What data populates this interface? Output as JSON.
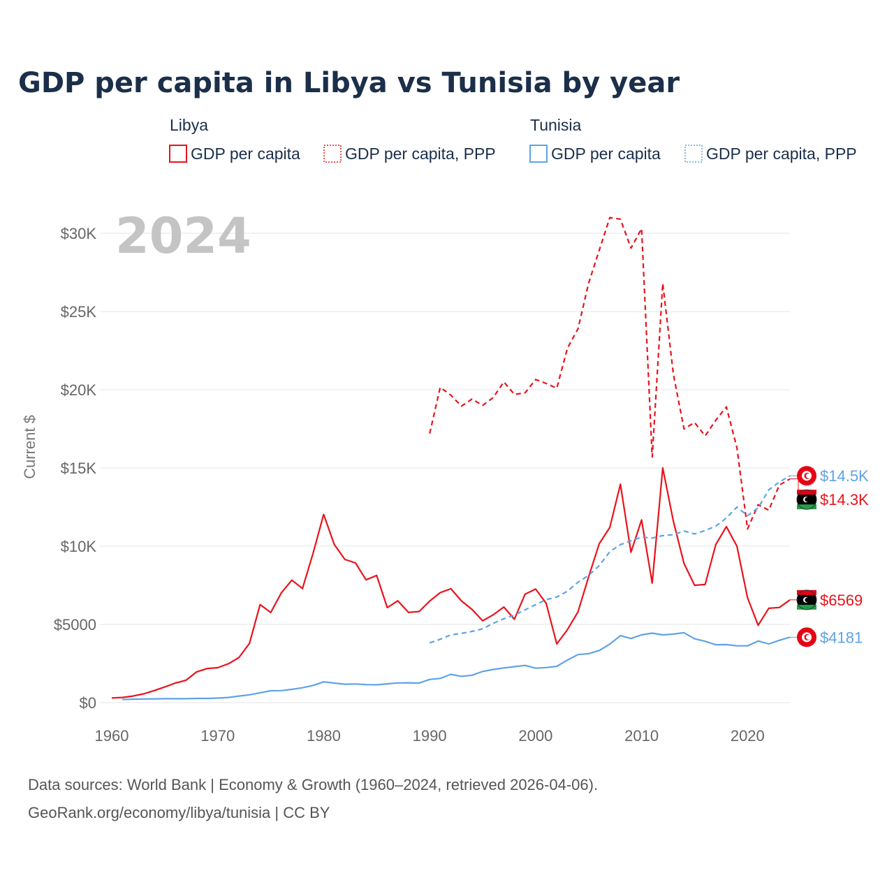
{
  "header": {
    "title": "GDP per capita in Libya vs Tunisia by year"
  },
  "legend": {
    "libya_label": "Libya",
    "tunisia_label": "Tunisia",
    "items": [
      {
        "country": "libya",
        "text": "GDP per capita",
        "style": "solid",
        "color": "#e8131c"
      },
      {
        "country": "libya",
        "text": "GDP per capita, PPP",
        "style": "dotted",
        "color": "#e8131c"
      },
      {
        "country": "tunisia",
        "text": "GDP per capita",
        "style": "solid",
        "color": "#5ea3e6"
      },
      {
        "country": "tunisia",
        "text": "GDP per capita, PPP",
        "style": "dotted",
        "color": "#5ea3e6"
      }
    ]
  },
  "footer": {
    "source_line1": "Data sources: World Bank | Economy & Growth (1960–2024, retrieved 2026-04-06).",
    "source_line2": "GeoRank.org/economy/libya/tunisia | CC BY"
  },
  "chart_data": {
    "type": "line",
    "title": "GDP per capita in Libya vs Tunisia by year",
    "current_year_label": "2024",
    "xlabel": "",
    "ylabel": "Current $",
    "xlim": [
      1960,
      2024
    ],
    "ylim": [
      0,
      32000
    ],
    "x_ticks": [
      1960,
      1970,
      1980,
      1990,
      2000,
      2010,
      2020
    ],
    "x_tick_labels": [
      "1960",
      "1970",
      "1980",
      "1990",
      "2000",
      "2010",
      "2020"
    ],
    "y_ticks": [
      0,
      5000,
      10000,
      15000,
      20000,
      25000,
      30000
    ],
    "y_tick_labels": [
      "$0",
      "$5000",
      "$10K",
      "$15K",
      "$20K",
      "$25K",
      "$30K"
    ],
    "grid": true,
    "series": [
      {
        "name": "Libya GDP per capita",
        "country": "Libya",
        "color": "#e8131c",
        "dash": "solid",
        "end_label": "$6569",
        "x": [
          1960,
          1961,
          1962,
          1963,
          1964,
          1965,
          1966,
          1967,
          1968,
          1969,
          1970,
          1971,
          1972,
          1973,
          1974,
          1975,
          1976,
          1977,
          1978,
          1979,
          1980,
          1981,
          1982,
          1983,
          1984,
          1985,
          1986,
          1987,
          1988,
          1989,
          1990,
          1991,
          1992,
          1993,
          1994,
          1995,
          1996,
          1997,
          1998,
          1999,
          2000,
          2001,
          2002,
          2003,
          2004,
          2005,
          2006,
          2007,
          2008,
          2009,
          2010,
          2011,
          2012,
          2013,
          2014,
          2015,
          2016,
          2017,
          2018,
          2019,
          2020,
          2021,
          2022,
          2023,
          2024
        ],
        "values": [
          300,
          330,
          420,
          560,
          770,
          1000,
          1250,
          1430,
          1960,
          2180,
          2230,
          2480,
          2880,
          3790,
          6270,
          5760,
          7020,
          7830,
          7290,
          9560,
          12030,
          10110,
          9150,
          8930,
          7850,
          8130,
          6070,
          6510,
          5770,
          5820,
          6490,
          7030,
          7280,
          6500,
          5960,
          5230,
          5610,
          6110,
          5330,
          6930,
          7260,
          6350,
          3750,
          4660,
          5810,
          8030,
          10150,
          11200,
          13960,
          9610,
          11680,
          7640,
          15000,
          11600,
          8900,
          7500,
          7550,
          10100,
          11250,
          10000,
          6700,
          4940,
          6030,
          6080,
          6569
        ]
      },
      {
        "name": "Libya GDP per capita, PPP",
        "country": "Libya",
        "color": "#e8131c",
        "dash": "dashed",
        "end_label": "$14.3K",
        "x": [
          1990,
          1991,
          1992,
          1993,
          1994,
          1995,
          1996,
          1997,
          1998,
          1999,
          2000,
          2001,
          2002,
          2003,
          2004,
          2005,
          2006,
          2007,
          2008,
          2009,
          2010,
          2011,
          2012,
          2013,
          2014,
          2015,
          2016,
          2017,
          2018,
          2019,
          2020,
          2021,
          2022,
          2023,
          2024
        ],
        "values": [
          17200,
          20150,
          19650,
          18950,
          19400,
          19000,
          19500,
          20500,
          19700,
          19800,
          20650,
          20400,
          20100,
          22650,
          23900,
          26800,
          28900,
          31000,
          30900,
          29050,
          30300,
          15700,
          26800,
          21000,
          17500,
          17900,
          17050,
          18050,
          18900,
          16300,
          11100,
          12650,
          12300,
          13900,
          14300
        ]
      },
      {
        "name": "Tunisia GDP per capita",
        "country": "Tunisia",
        "color": "#5ea3e6",
        "dash": "solid",
        "end_label": "$4181",
        "x": [
          1961,
          1962,
          1963,
          1964,
          1965,
          1966,
          1967,
          1968,
          1969,
          1970,
          1971,
          1972,
          1973,
          1974,
          1975,
          1976,
          1977,
          1978,
          1979,
          1980,
          1981,
          1982,
          1983,
          1984,
          1985,
          1986,
          1987,
          1988,
          1989,
          1990,
          1991,
          1992,
          1993,
          1994,
          1995,
          1996,
          1997,
          1998,
          1999,
          2000,
          2001,
          2002,
          2003,
          2004,
          2005,
          2006,
          2007,
          2008,
          2009,
          2010,
          2011,
          2012,
          2013,
          2014,
          2015,
          2016,
          2017,
          2018,
          2019,
          2020,
          2021,
          2022,
          2023,
          2024
        ],
        "values": [
          200,
          220,
          230,
          240,
          250,
          250,
          250,
          270,
          270,
          290,
          330,
          420,
          500,
          630,
          760,
          770,
          850,
          950,
          1100,
          1330,
          1250,
          1180,
          1190,
          1150,
          1140,
          1200,
          1260,
          1270,
          1250,
          1480,
          1550,
          1810,
          1680,
          1750,
          1990,
          2120,
          2220,
          2300,
          2380,
          2200,
          2240,
          2320,
          2720,
          3070,
          3130,
          3330,
          3740,
          4280,
          4100,
          4330,
          4440,
          4330,
          4380,
          4470,
          4080,
          3920,
          3700,
          3710,
          3630,
          3630,
          3940,
          3750,
          3980,
          4181
        ]
      },
      {
        "name": "Tunisia GDP per capita, PPP",
        "country": "Tunisia",
        "color": "#5ea3e6",
        "dash": "dashed",
        "end_label": "$14.5K",
        "x": [
          1990,
          1991,
          1992,
          1993,
          1994,
          1995,
          1996,
          1997,
          1998,
          1999,
          2000,
          2001,
          2002,
          2003,
          2004,
          2005,
          2006,
          2007,
          2008,
          2009,
          2010,
          2011,
          2012,
          2013,
          2014,
          2015,
          2016,
          2017,
          2018,
          2019,
          2020,
          2021,
          2022,
          2023,
          2024
        ],
        "values": [
          3820,
          4050,
          4330,
          4430,
          4550,
          4720,
          5070,
          5360,
          5590,
          5930,
          6270,
          6580,
          6750,
          7120,
          7700,
          8130,
          8750,
          9650,
          10100,
          10350,
          10580,
          10520,
          10680,
          10730,
          10970,
          10780,
          11000,
          11280,
          11800,
          12500,
          11950,
          12450,
          13600,
          14100,
          14500
        ]
      }
    ]
  }
}
